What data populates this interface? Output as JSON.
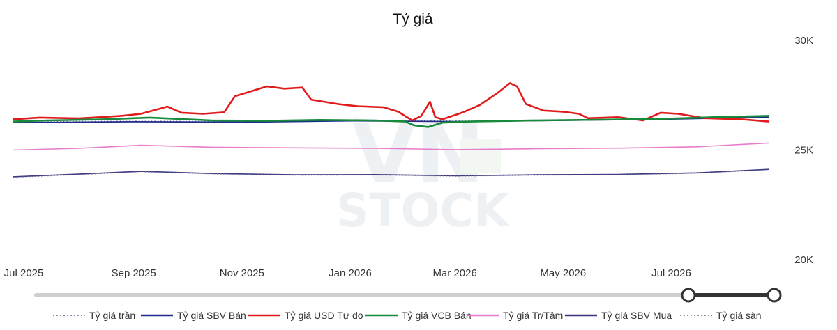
{
  "chart_data": {
    "type": "line",
    "title": "Tỷ giá",
    "xlabel": "",
    "ylabel": "",
    "x_range": [
      "2025-07-01",
      "2026-08-28"
    ],
    "ylim": [
      20000,
      30000
    ],
    "y_ticks": [
      {
        "value": 30000,
        "label": "30K"
      },
      {
        "value": 25000,
        "label": "25K"
      },
      {
        "value": 20000,
        "label": "20K"
      }
    ],
    "x_ticks": [
      {
        "date": "2025-07-01",
        "label": "Jul 2025"
      },
      {
        "date": "2025-09-01",
        "label": "Sep 2025"
      },
      {
        "date": "2025-11-01",
        "label": "Nov 2025"
      },
      {
        "date": "2026-01-01",
        "label": "Jan 2026"
      },
      {
        "date": "2026-03-01",
        "label": "Mar 2026"
      },
      {
        "date": "2026-05-01",
        "label": "May 2026"
      },
      {
        "date": "2026-07-01",
        "label": "Jul 2026"
      }
    ],
    "grid": false,
    "legend_position": "bottom",
    "watermark": "VN STOCK",
    "series": [
      {
        "name": "Tỷ giá trần",
        "color": "#6b6b8e",
        "style": "dotted",
        "points": [
          [
            "2025-06-25",
            26280
          ],
          [
            "2025-09-01",
            26320
          ],
          [
            "2025-11-01",
            26300
          ],
          [
            "2026-01-01",
            26360
          ],
          [
            "2026-03-01",
            26330
          ],
          [
            "2026-05-01",
            26380
          ],
          [
            "2026-07-01",
            26440
          ],
          [
            "2026-08-25",
            26520
          ]
        ]
      },
      {
        "name": "Tỷ giá SBV Bán",
        "color": "#1f2b8a",
        "style": "solid",
        "points": [
          [
            "2025-06-25",
            26250
          ],
          [
            "2025-09-01",
            26290
          ],
          [
            "2025-11-01",
            26270
          ],
          [
            "2026-01-01",
            26330
          ],
          [
            "2026-03-01",
            26300
          ],
          [
            "2026-05-01",
            26350
          ],
          [
            "2026-07-01",
            26410
          ],
          [
            "2026-08-25",
            26500
          ]
        ]
      },
      {
        "name": "Tỷ giá USD Tự do",
        "color": "#e11b1b",
        "style": "solid",
        "points": [
          [
            "2025-06-25",
            26400
          ],
          [
            "2025-07-10",
            26480
          ],
          [
            "2025-08-01",
            26440
          ],
          [
            "2025-08-25",
            26560
          ],
          [
            "2025-09-05",
            26650
          ],
          [
            "2025-09-20",
            26980
          ],
          [
            "2025-09-28",
            26700
          ],
          [
            "2025-10-10",
            26650
          ],
          [
            "2025-10-22",
            26720
          ],
          [
            "2025-10-28",
            27450
          ],
          [
            "2025-11-05",
            27650
          ],
          [
            "2025-11-15",
            27900
          ],
          [
            "2025-11-25",
            27800
          ],
          [
            "2025-12-05",
            27850
          ],
          [
            "2025-12-10",
            27300
          ],
          [
            "2025-12-25",
            27100
          ],
          [
            "2026-01-05",
            27000
          ],
          [
            "2026-01-20",
            26950
          ],
          [
            "2026-01-28",
            26750
          ],
          [
            "2026-02-05",
            26350
          ],
          [
            "2026-02-10",
            26550
          ],
          [
            "2026-02-15",
            27200
          ],
          [
            "2026-02-18",
            26500
          ],
          [
            "2026-02-22",
            26400
          ],
          [
            "2026-03-05",
            26700
          ],
          [
            "2026-03-15",
            27050
          ],
          [
            "2026-03-25",
            27600
          ],
          [
            "2026-04-01",
            28050
          ],
          [
            "2026-04-05",
            27900
          ],
          [
            "2026-04-10",
            27100
          ],
          [
            "2026-04-20",
            26800
          ],
          [
            "2026-05-01",
            26750
          ],
          [
            "2026-05-10",
            26650
          ],
          [
            "2026-05-15",
            26450
          ],
          [
            "2026-06-01",
            26500
          ],
          [
            "2026-06-15",
            26350
          ],
          [
            "2026-06-25",
            26700
          ],
          [
            "2026-07-05",
            26650
          ],
          [
            "2026-07-20",
            26450
          ],
          [
            "2026-08-10",
            26400
          ],
          [
            "2026-08-25",
            26300
          ]
        ]
      },
      {
        "name": "Tỷ giá VCB Bán",
        "color": "#178a3b",
        "style": "solid",
        "points": [
          [
            "2025-06-25",
            26300
          ],
          [
            "2025-07-15",
            26350
          ],
          [
            "2025-08-15",
            26400
          ],
          [
            "2025-09-10",
            26480
          ],
          [
            "2025-10-15",
            26350
          ],
          [
            "2025-11-15",
            26330
          ],
          [
            "2025-12-15",
            26370
          ],
          [
            "2026-01-15",
            26350
          ],
          [
            "2026-02-01",
            26300
          ],
          [
            "2026-02-06",
            26130
          ],
          [
            "2026-02-14",
            26050
          ],
          [
            "2026-02-22",
            26250
          ],
          [
            "2026-03-10",
            26300
          ],
          [
            "2026-04-15",
            26350
          ],
          [
            "2026-05-20",
            26380
          ],
          [
            "2026-06-25",
            26420
          ],
          [
            "2026-07-25",
            26500
          ],
          [
            "2026-08-25",
            26560
          ]
        ]
      },
      {
        "name": "Tỷ giá Tr/Tâm",
        "color": "#e67ccb",
        "style": "solid",
        "points": [
          [
            "2025-06-25",
            25000
          ],
          [
            "2025-08-01",
            25080
          ],
          [
            "2025-09-05",
            25220
          ],
          [
            "2025-10-15",
            25130
          ],
          [
            "2025-12-01",
            25100
          ],
          [
            "2026-01-15",
            25080
          ],
          [
            "2026-03-01",
            25020
          ],
          [
            "2026-04-15",
            25060
          ],
          [
            "2026-06-01",
            25090
          ],
          [
            "2026-07-15",
            25150
          ],
          [
            "2026-08-25",
            25320
          ]
        ]
      },
      {
        "name": "Tỷ giá SBV Mua",
        "color": "#3a3680",
        "style": "solid",
        "points": [
          [
            "2025-06-25",
            23780
          ],
          [
            "2025-08-01",
            23900
          ],
          [
            "2025-09-05",
            24030
          ],
          [
            "2025-10-15",
            23930
          ],
          [
            "2025-12-01",
            23870
          ],
          [
            "2026-01-15",
            23880
          ],
          [
            "2026-03-01",
            23830
          ],
          [
            "2026-04-15",
            23870
          ],
          [
            "2026-06-01",
            23890
          ],
          [
            "2026-07-15",
            23960
          ],
          [
            "2026-08-25",
            24120
          ]
        ]
      },
      {
        "name": "Tỷ giá sàn",
        "color": "#6b6b8e",
        "style": "dotted",
        "points": [
          [
            "2025-06-25",
            23760
          ],
          [
            "2025-08-01",
            23880
          ],
          [
            "2025-09-05",
            24010
          ],
          [
            "2025-10-15",
            23910
          ],
          [
            "2025-12-01",
            23850
          ],
          [
            "2026-01-15",
            23860
          ],
          [
            "2026-03-01",
            23810
          ],
          [
            "2026-04-15",
            23850
          ],
          [
            "2026-06-01",
            23870
          ],
          [
            "2026-07-15",
            23940
          ],
          [
            "2026-08-25",
            24100
          ]
        ]
      }
    ]
  }
}
